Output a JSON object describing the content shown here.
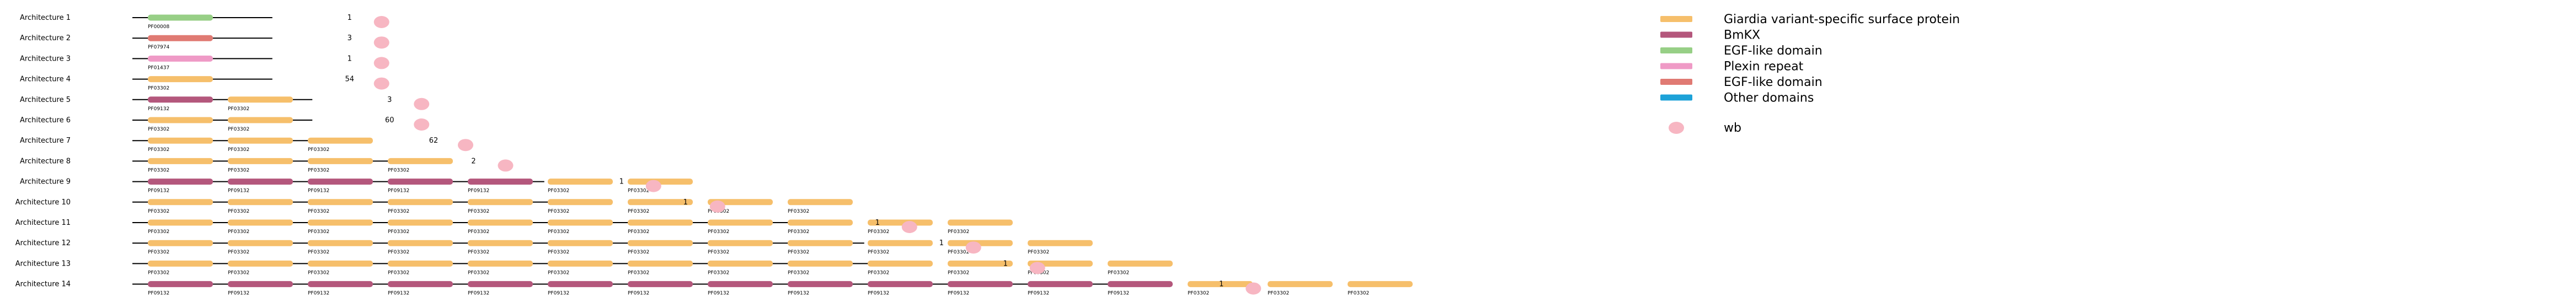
{
  "colors": {
    "giardia": "#f6bf6b",
    "bmkx": "#b4577c",
    "egf_green": "#97cf86",
    "plexin": "#ef9ac6",
    "egf_red": "#e07a73",
    "other": "#1da2d8",
    "wb": "#f7b6c2",
    "backbone": "#000000"
  },
  "legend": {
    "entries": [
      {
        "label": "Giardia variant-specific surface protein",
        "color": "#f6bf6b"
      },
      {
        "label": "BmKX",
        "color": "#b4577c"
      },
      {
        "label": "EGF-like domain",
        "color": "#97cf86"
      },
      {
        "label": "Plexin repeat",
        "color": "#ef9ac6"
      },
      {
        "label": "EGF-like domain",
        "color": "#e07a73"
      },
      {
        "label": "Other domains",
        "color": "#1da2d8"
      }
    ],
    "species": [
      {
        "label": "wb",
        "color": "#f7b6c2"
      }
    ]
  },
  "architectures": [
    {
      "label": "Architecture 1",
      "count": "1",
      "length": 3.5,
      "domains": [
        {
          "color": "#97cf86",
          "label": "PF00008"
        }
      ]
    },
    {
      "label": "Architecture 2",
      "count": "3",
      "length": 3.5,
      "domains": [
        {
          "color": "#e07a73",
          "label": "PF07974"
        }
      ]
    },
    {
      "label": "Architecture 3",
      "count": "1",
      "length": 3.5,
      "domains": [
        {
          "color": "#ef9ac6",
          "label": "PF01437"
        }
      ]
    },
    {
      "label": "Architecture 4",
      "count": "54",
      "length": 3.5,
      "domains": [
        {
          "color": "#f6bf6b",
          "label": "PF03302"
        }
      ]
    },
    {
      "label": "Architecture 5",
      "count": "3",
      "length": 4.5,
      "domains": [
        {
          "color": "#b4577c",
          "label": "PF09132"
        },
        {
          "color": "#f6bf6b",
          "label": "PF03302"
        }
      ]
    },
    {
      "label": "Architecture 6",
      "count": "60",
      "length": 4.5,
      "domains": [
        {
          "color": "#f6bf6b",
          "label": "PF03302"
        },
        {
          "color": "#f6bf6b",
          "label": "PF03302"
        }
      ]
    },
    {
      "label": "Architecture 7",
      "count": "62",
      "length": 5.6,
      "domains": [
        {
          "color": "#f6bf6b",
          "label": "PF03302"
        },
        {
          "color": "#f6bf6b",
          "label": "PF03302"
        },
        {
          "color": "#f6bf6b",
          "label": "PF03302"
        }
      ]
    },
    {
      "label": "Architecture 8",
      "count": "2",
      "length": 6.6,
      "domains": [
        {
          "color": "#f6bf6b",
          "label": "PF03302"
        },
        {
          "color": "#f6bf6b",
          "label": "PF03302"
        },
        {
          "color": "#f6bf6b",
          "label": "PF03302"
        },
        {
          "color": "#f6bf6b",
          "label": "PF03302"
        }
      ]
    },
    {
      "label": "Architecture 9",
      "count": "1",
      "length": 10.3,
      "domains": [
        {
          "color": "#b4577c",
          "label": "PF09132"
        },
        {
          "color": "#b4577c",
          "label": "PF09132"
        },
        {
          "color": "#b4577c",
          "label": "PF09132"
        },
        {
          "color": "#b4577c",
          "label": "PF09132"
        },
        {
          "color": "#b4577c",
          "label": "PF09132"
        },
        {
          "color": "#f6bf6b",
          "label": "PF03302"
        },
        {
          "color": "#f6bf6b",
          "label": "PF03302"
        }
      ]
    },
    {
      "label": "Architecture 10",
      "count": "1",
      "length": 11.9,
      "domains": [
        {
          "color": "#f6bf6b",
          "label": "PF03302"
        },
        {
          "color": "#f6bf6b",
          "label": "PF03302"
        },
        {
          "color": "#f6bf6b",
          "label": "PF03302"
        },
        {
          "color": "#f6bf6b",
          "label": "PF03302"
        },
        {
          "color": "#f6bf6b",
          "label": "PF03302"
        },
        {
          "color": "#f6bf6b",
          "label": "PF03302"
        },
        {
          "color": "#f6bf6b",
          "label": "PF03302"
        },
        {
          "color": "#f6bf6b",
          "label": "PF03302"
        },
        {
          "color": "#f6bf6b",
          "label": "PF03302"
        }
      ]
    },
    {
      "label": "Architecture 11",
      "count": "1",
      "length": 16.7,
      "domains": [
        {
          "color": "#f6bf6b",
          "label": "PF03302"
        },
        {
          "color": "#f6bf6b",
          "label": "PF03302"
        },
        {
          "color": "#f6bf6b",
          "label": "PF03302"
        },
        {
          "color": "#f6bf6b",
          "label": "PF03302"
        },
        {
          "color": "#f6bf6b",
          "label": "PF03302"
        },
        {
          "color": "#f6bf6b",
          "label": "PF03302"
        },
        {
          "color": "#f6bf6b",
          "label": "PF03302"
        },
        {
          "color": "#f6bf6b",
          "label": "PF03302"
        },
        {
          "color": "#f6bf6b",
          "label": "PF03302"
        },
        {
          "color": "#f6bf6b",
          "label": "PF03302"
        },
        {
          "color": "#f6bf6b",
          "label": "PF03302"
        }
      ]
    },
    {
      "label": "Architecture 12",
      "count": "1",
      "length": 18.3,
      "domains": [
        {
          "color": "#f6bf6b",
          "label": "PF03302"
        },
        {
          "color": "#f6bf6b",
          "label": "PF03302"
        },
        {
          "color": "#f6bf6b",
          "label": "PF03302"
        },
        {
          "color": "#f6bf6b",
          "label": "PF03302"
        },
        {
          "color": "#f6bf6b",
          "label": "PF03302"
        },
        {
          "color": "#f6bf6b",
          "label": "PF03302"
        },
        {
          "color": "#f6bf6b",
          "label": "PF03302"
        },
        {
          "color": "#f6bf6b",
          "label": "PF03302"
        },
        {
          "color": "#f6bf6b",
          "label": "PF03302"
        },
        {
          "color": "#f6bf6b",
          "label": "PF03302"
        },
        {
          "color": "#f6bf6b",
          "label": "PF03302"
        },
        {
          "color": "#f6bf6b",
          "label": "PF03302"
        }
      ]
    },
    {
      "label": "Architecture 13",
      "count": "1",
      "length": 19.9,
      "domains": [
        {
          "color": "#f6bf6b",
          "label": "PF03302"
        },
        {
          "color": "#f6bf6b",
          "label": "PF03302"
        },
        {
          "color": "#f6bf6b",
          "label": "PF03302"
        },
        {
          "color": "#f6bf6b",
          "label": "PF03302"
        },
        {
          "color": "#f6bf6b",
          "label": "PF03302"
        },
        {
          "color": "#f6bf6b",
          "label": "PF03302"
        },
        {
          "color": "#f6bf6b",
          "label": "PF03302"
        },
        {
          "color": "#f6bf6b",
          "label": "PF03302"
        },
        {
          "color": "#f6bf6b",
          "label": "PF03302"
        },
        {
          "color": "#f6bf6b",
          "label": "PF03302"
        },
        {
          "color": "#f6bf6b",
          "label": "PF03302"
        },
        {
          "color": "#f6bf6b",
          "label": "PF03302"
        },
        {
          "color": "#f6bf6b",
          "label": "PF03302"
        }
      ]
    },
    {
      "label": "Architecture 14",
      "count": "1",
      "length": 25.3,
      "domains": [
        {
          "color": "#b4577c",
          "label": "PF09132"
        },
        {
          "color": "#b4577c",
          "label": "PF09132"
        },
        {
          "color": "#b4577c",
          "label": "PF09132"
        },
        {
          "color": "#b4577c",
          "label": "PF09132"
        },
        {
          "color": "#b4577c",
          "label": "PF09132"
        },
        {
          "color": "#b4577c",
          "label": "PF09132"
        },
        {
          "color": "#b4577c",
          "label": "PF09132"
        },
        {
          "color": "#b4577c",
          "label": "PF09132"
        },
        {
          "color": "#b4577c",
          "label": "PF09132"
        },
        {
          "color": "#b4577c",
          "label": "PF09132"
        },
        {
          "color": "#b4577c",
          "label": "PF09132"
        },
        {
          "color": "#b4577c",
          "label": "PF09132"
        },
        {
          "color": "#b4577c",
          "label": "PF09132"
        },
        {
          "color": "#f6bf6b",
          "label": "PF03302"
        },
        {
          "color": "#f6bf6b",
          "label": "PF03302"
        },
        {
          "color": "#f6bf6b",
          "label": "PF03302"
        }
      ]
    }
  ]
}
